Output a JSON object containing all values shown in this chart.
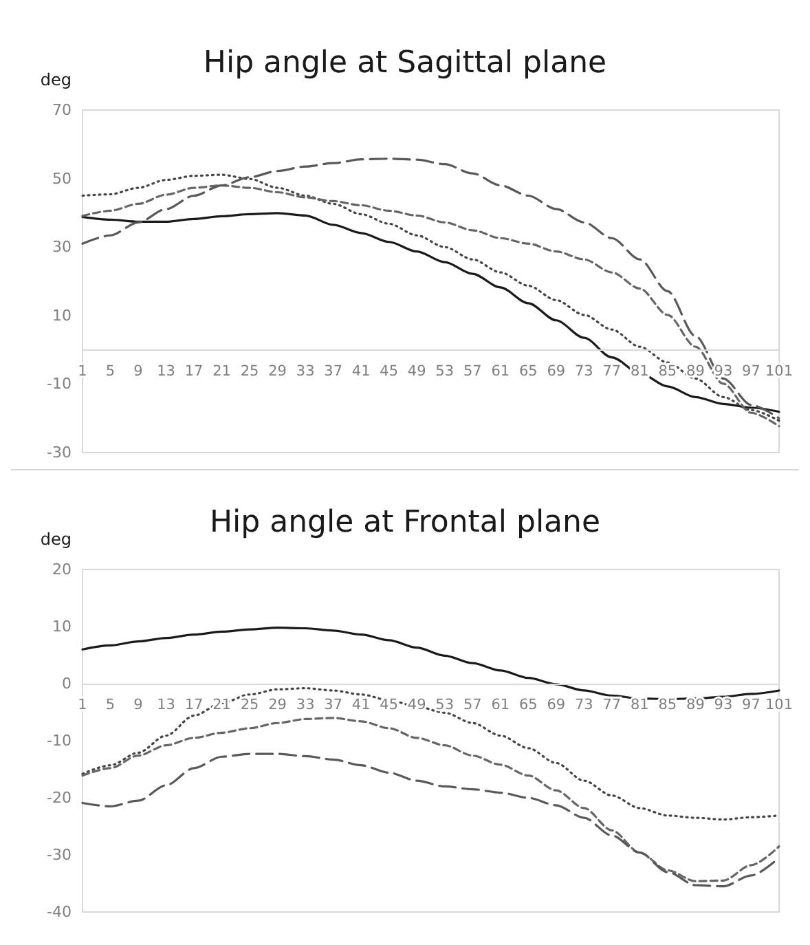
{
  "chart_data": [
    {
      "type": "line",
      "title": "Hip angle at Sagittal plane",
      "ylabel": "deg",
      "x": [
        1,
        5,
        9,
        13,
        17,
        21,
        25,
        29,
        33,
        37,
        41,
        45,
        49,
        53,
        57,
        61,
        65,
        69,
        73,
        77,
        81,
        85,
        89,
        93,
        97,
        101
      ],
      "xlim": [
        1,
        101
      ],
      "xticks": [
        1,
        5,
        9,
        13,
        17,
        21,
        25,
        29,
        33,
        37,
        41,
        45,
        49,
        53,
        57,
        61,
        65,
        69,
        73,
        77,
        81,
        85,
        89,
        93,
        97,
        101
      ],
      "ylim": [
        -30,
        70
      ],
      "yticks": [
        -30,
        -10,
        10,
        30,
        50,
        70
      ],
      "grid": false,
      "marker": "none",
      "series": [
        {
          "color": "#1a1a1a",
          "line_style": "solid",
          "values": [
            38.8,
            38,
            37.4,
            37.4,
            38.2,
            39,
            39.6,
            39.9,
            39.2,
            36.5,
            34.1,
            31.5,
            28.7,
            25.6,
            22.2,
            18.2,
            13.6,
            8.6,
            3.5,
            -2.2,
            -6.8,
            -10.7,
            -13.8,
            -15.8,
            -16.9,
            -18.1
          ]
        },
        {
          "color": "#444444",
          "line_style": "dotted",
          "values": [
            45,
            45.4,
            47.3,
            49.6,
            50.8,
            51.1,
            49.9,
            47.3,
            45,
            42.6,
            39.6,
            36.8,
            33.4,
            30,
            26.4,
            22.6,
            18.7,
            14.5,
            10.2,
            5.9,
            0.9,
            -3.7,
            -8.4,
            -13.8,
            -17.6,
            -20.7
          ]
        },
        {
          "color": "#666666",
          "line_style": "dashed",
          "values": [
            39.1,
            40.6,
            42.6,
            45.3,
            47.3,
            48,
            47.3,
            46,
            44.5,
            43.4,
            42.2,
            40.6,
            39.2,
            37.2,
            34.9,
            32.6,
            31,
            28.7,
            26.4,
            22.6,
            17.9,
            10.2,
            0.9,
            -9.9,
            -18.4,
            -22.3
          ]
        },
        {
          "color": "#595959",
          "line_style": "dashed",
          "values": [
            31,
            33.4,
            37.2,
            41.1,
            45,
            48,
            50.4,
            52.2,
            53.5,
            54.5,
            55.6,
            55.8,
            55.5,
            54.2,
            51.5,
            48,
            45,
            41.1,
            37.2,
            32.6,
            26.4,
            17.1,
            4,
            -8.4,
            -16.1,
            -20
          ]
        }
      ]
    },
    {
      "type": "line",
      "title": "Hip angle at Frontal plane",
      "ylabel": "deg",
      "x": [
        1,
        5,
        9,
        13,
        17,
        21,
        25,
        29,
        33,
        37,
        41,
        45,
        49,
        53,
        57,
        61,
        65,
        69,
        73,
        77,
        81,
        85,
        89,
        93,
        97,
        101
      ],
      "xlim": [
        1,
        101
      ],
      "xticks": [
        1,
        5,
        9,
        13,
        17,
        21,
        25,
        29,
        33,
        37,
        41,
        45,
        49,
        53,
        57,
        61,
        65,
        69,
        73,
        77,
        81,
        85,
        89,
        93,
        97,
        101
      ],
      "ylim": [
        -40,
        20
      ],
      "yticks": [
        -40,
        -30,
        -20,
        -10,
        0,
        10,
        20
      ],
      "grid": false,
      "marker": "none",
      "series": [
        {
          "color": "#1a1a1a",
          "line_style": "solid",
          "values": [
            6,
            6.7,
            7.4,
            8,
            8.6,
            9.1,
            9.5,
            9.8,
            9.7,
            9.3,
            8.6,
            7.6,
            6.3,
            4.9,
            3.6,
            2.3,
            1,
            -0.1,
            -1.2,
            -2.1,
            -2.6,
            -2.7,
            -2.6,
            -2.3,
            -1.8,
            -1.2
          ]
        },
        {
          "color": "#444444",
          "line_style": "dotted",
          "values": [
            -15.8,
            -14.3,
            -12.1,
            -9.1,
            -5.6,
            -3.4,
            -1.9,
            -1,
            -0.8,
            -1.2,
            -1.9,
            -2.9,
            -4,
            -5.1,
            -6.9,
            -9.1,
            -11.3,
            -13.9,
            -17,
            -19.6,
            -21.8,
            -23.1,
            -23.5,
            -23.8,
            -23.4,
            -23.1
          ]
        },
        {
          "color": "#666666",
          "line_style": "dashed",
          "values": [
            -16.1,
            -14.8,
            -12.6,
            -10.8,
            -9.5,
            -8.6,
            -7.8,
            -6.9,
            -6.2,
            -6,
            -6.6,
            -7.8,
            -9.5,
            -10.8,
            -12.6,
            -14.2,
            -16.1,
            -18.7,
            -21.8,
            -25.7,
            -29.6,
            -32.7,
            -34.6,
            -34.5,
            -31.8,
            -28.5
          ]
        },
        {
          "color": "#595959",
          "line_style": "dashed",
          "values": [
            -20.9,
            -21.5,
            -20.5,
            -17.8,
            -14.8,
            -12.8,
            -12.3,
            -12.3,
            -12.7,
            -13.3,
            -14.3,
            -15.6,
            -17,
            -18,
            -18.5,
            -19.1,
            -20,
            -21.3,
            -23.5,
            -26.6,
            -29.6,
            -33,
            -35.3,
            -35.5,
            -33.6,
            -30.5
          ]
        }
      ]
    }
  ]
}
